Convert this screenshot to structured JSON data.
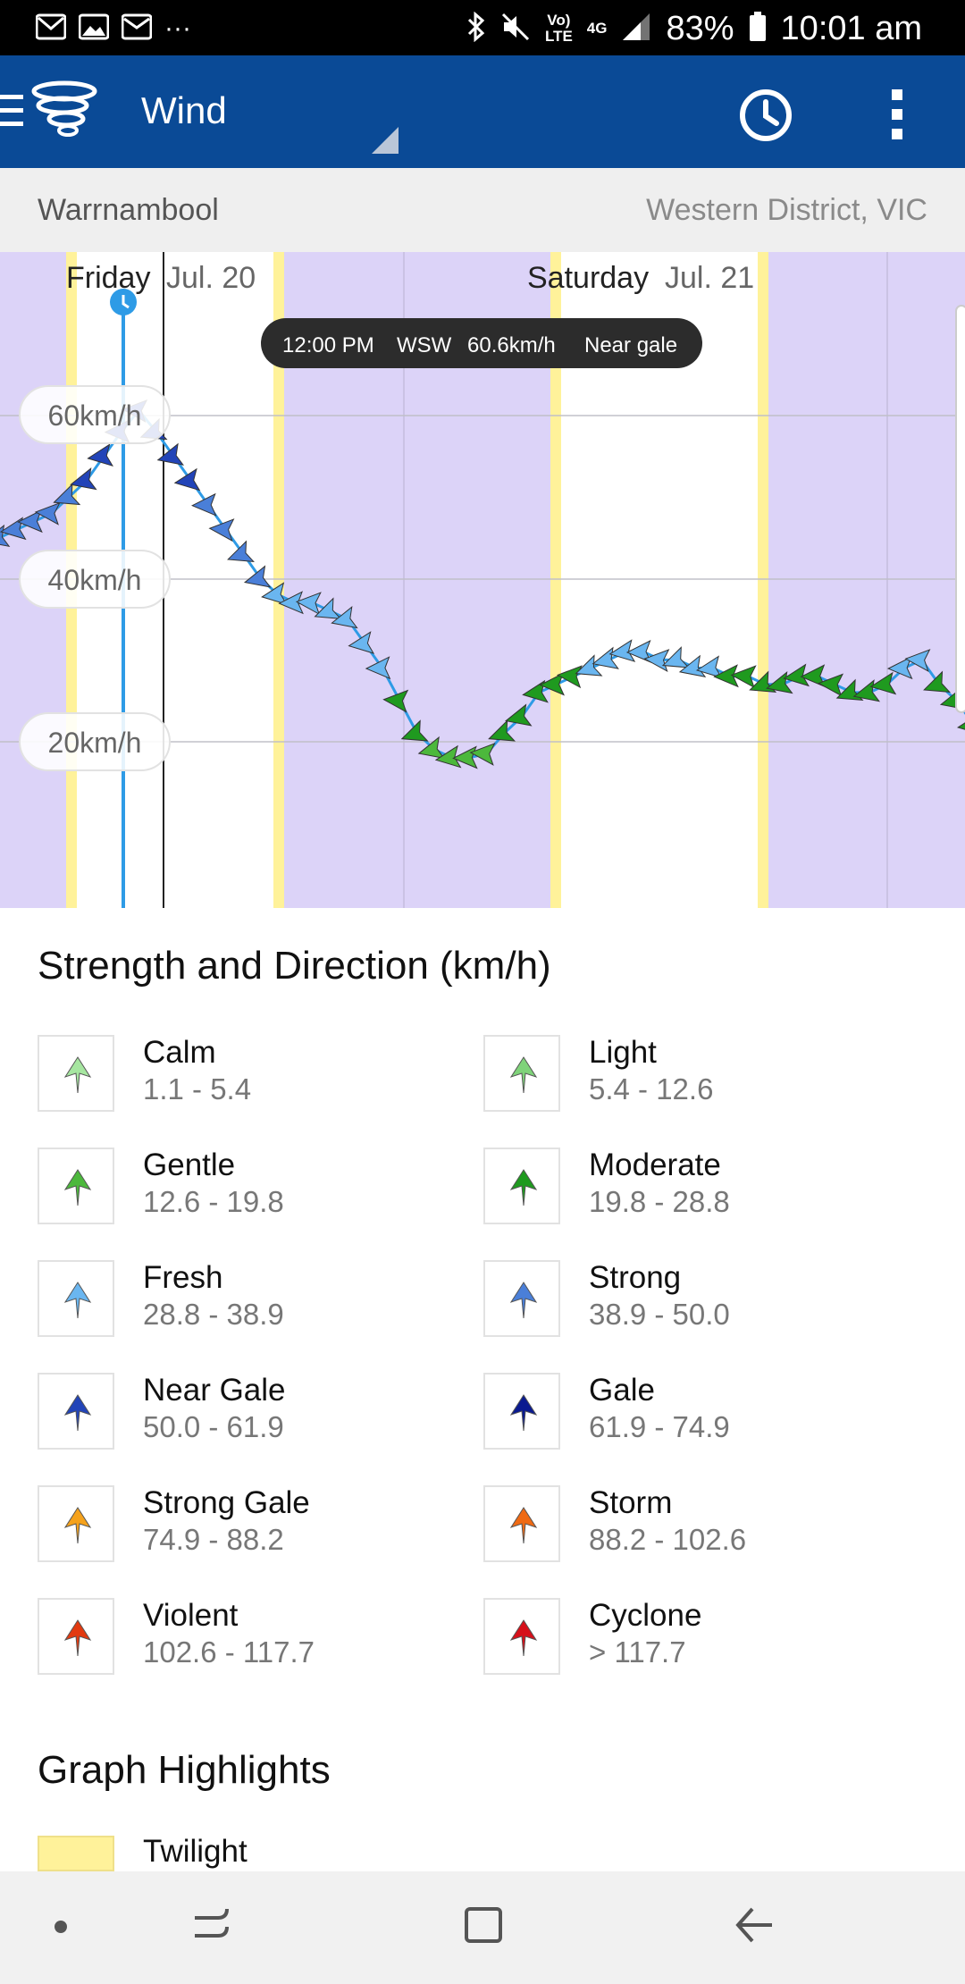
{
  "status_bar": {
    "battery": "83%",
    "time": "10:01 am",
    "network": "4G",
    "volte_line1": "Vo)",
    "volte_line2": "LTE",
    "more": "···"
  },
  "app_bar": {
    "title": "Wind"
  },
  "location": {
    "city": "Warrnambool",
    "region": "Western District, VIC"
  },
  "graph": {
    "days": [
      {
        "day": "Friday",
        "date": "Jul. 20"
      },
      {
        "day": "Saturday",
        "date": "Jul. 21"
      }
    ],
    "tooltip": {
      "time": "12:00 PM",
      "direction": "WSW",
      "speed": "60.6km/h",
      "category": "Near gale"
    },
    "y_labels": [
      "60km/h",
      "40km/h",
      "20km/h"
    ]
  },
  "colors": {
    "night_band": "#dcd3f8",
    "twilight": "#fff29a",
    "speed_line": "#2e9be6"
  },
  "chart_data": {
    "type": "line",
    "y_ticks": [
      20,
      40,
      60
    ],
    "series": [
      {
        "values": [
          44,
          45,
          46,
          47,
          48,
          50,
          52,
          55,
          58,
          60.6,
          58,
          55,
          52,
          49,
          46,
          43,
          40,
          38,
          37,
          37,
          36,
          35,
          32,
          29,
          25,
          21,
          19,
          18,
          18,
          18.5,
          21,
          23,
          26,
          27,
          28,
          29,
          30,
          31,
          31,
          30,
          30,
          29,
          29,
          28,
          28,
          27,
          27,
          28,
          28,
          27,
          26,
          26,
          27,
          29,
          30,
          27,
          25,
          22
        ]
      }
    ]
  },
  "legend": {
    "title": "Strength and Direction (km/h)",
    "items": [
      {
        "name": "Calm",
        "range": "1.1 - 5.4",
        "color": "#a6e6a0"
      },
      {
        "name": "Light",
        "range": "5.4 - 12.6",
        "color": "#7fd37a"
      },
      {
        "name": "Gentle",
        "range": "12.6 - 19.8",
        "color": "#4cb83c"
      },
      {
        "name": "Moderate",
        "range": "19.8 - 28.8",
        "color": "#1f9a1f"
      },
      {
        "name": "Fresh",
        "range": "28.8 - 38.9",
        "color": "#6ab6f0"
      },
      {
        "name": "Strong",
        "range": "38.9 - 50.0",
        "color": "#4a7fd8"
      },
      {
        "name": "Near Gale",
        "range": "50.0 - 61.9",
        "color": "#2244b8"
      },
      {
        "name": "Gale",
        "range": "61.9 - 74.9",
        "color": "#0a1a90"
      },
      {
        "name": "Strong Gale",
        "range": "74.9 - 88.2",
        "color": "#f5a21c"
      },
      {
        "name": "Storm",
        "range": "88.2 - 102.6",
        "color": "#ef6a14"
      },
      {
        "name": "Violent",
        "range": "102.6 - 117.7",
        "color": "#e23a10"
      },
      {
        "name": "Cyclone",
        "range": "> 117.7",
        "color": "#d6101a"
      }
    ]
  },
  "highlights": {
    "title": "Graph Highlights",
    "twilight_label": "Twilight"
  }
}
